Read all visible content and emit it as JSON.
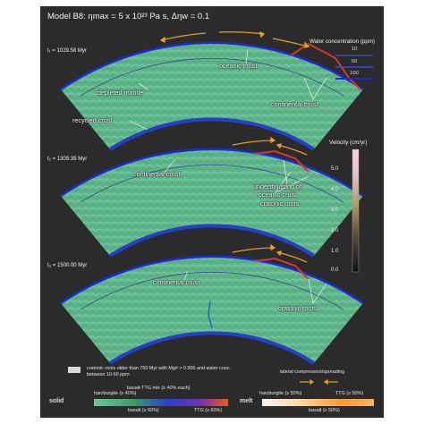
{
  "figure": {
    "title": "Model B8: ηmax = 5 x 10²³ Pa s, Δηw = 0.1",
    "panels": [
      {
        "time_label": "t₁ = 1029.58 Myr"
      },
      {
        "time_label": "t₂ = 1309.39 Myr"
      },
      {
        "time_label": "t₃ = 1500.00 Myr"
      }
    ],
    "annotations": {
      "panel1": [
        "oceanic crust",
        "depleted mantle",
        "recycled crust",
        "continental crust"
      ],
      "panel2": [
        "continental crust",
        "underthrusting of oceanic crust",
        "cratonic roots"
      ],
      "panel3": [
        "continental crust",
        "cratonic roots"
      ]
    },
    "water_legend": {
      "title": "Water concentration (ppm)",
      "items": [
        "10",
        "50",
        "100"
      ]
    },
    "velocity_colorbar": {
      "title": "Velocity (cm/yr)",
      "ticks": [
        "5.0",
        "4.0",
        "3.0",
        "2.0",
        "1.0",
        "0.0"
      ]
    },
    "bottom_legend": {
      "cratonic_note": "cratonic roots older than 750 Myr with Mg# > 0.905 and water conc. between 10-50 ppm",
      "lateral_label": "lateral compression/spreading",
      "solid_label": "solid",
      "melt_label": "melt",
      "solid_items": [
        "harzburgite (≥ 40%)",
        "basalt-TTG mix (≥ 40% each)",
        "basalt (≥ 60%)",
        "TTG (≥ 60%)"
      ],
      "melt_items": [
        "harzburgite (≥ 50%)",
        "TTG (≥ 50%)",
        "basalt (≥ 50%)"
      ]
    },
    "colors": {
      "background": "#2b2b2b",
      "mantle": "#5fb58a",
      "core_band": "#2640c8",
      "crust": "#1b2bd6",
      "arrow": "#e8a020"
    }
  }
}
